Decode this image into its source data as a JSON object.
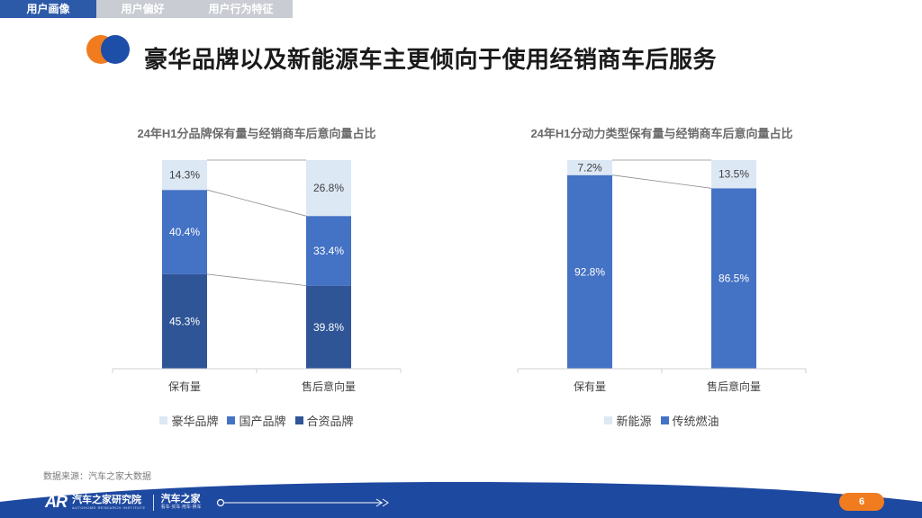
{
  "tabs": [
    {
      "label": "用户画像",
      "active": true
    },
    {
      "label": "用户偏好",
      "active": false
    },
    {
      "label": "用户行为特征",
      "active": false
    }
  ],
  "page_title": "豪华品牌以及新能源车主更倾向于使用经销商车后服务",
  "colors": {
    "accent_orange": "#f07c1f",
    "accent_blue": "#1d4ea8",
    "series_light": "#dde8f5",
    "series_mid": "#4472c4",
    "series_dark": "#2f5597"
  },
  "chart_data": [
    {
      "type": "bar",
      "stacked": true,
      "title": "24年H1分品牌保有量与经销商车后意向量占比",
      "categories": [
        "保有量",
        "售后意向量"
      ],
      "series": [
        {
          "name": "合资品牌",
          "color": "#2f5597",
          "values": [
            45.3,
            39.8
          ],
          "labels": [
            "45.3%",
            "39.8%"
          ],
          "label_color": "#ffffff"
        },
        {
          "name": "国产品牌",
          "color": "#4472c4",
          "values": [
            40.4,
            33.4
          ],
          "labels": [
            "40.4%",
            "33.4%"
          ],
          "label_color": "#ffffff"
        },
        {
          "name": "豪华品牌",
          "color": "#dde8f5",
          "values": [
            14.3,
            26.8
          ],
          "labels": [
            "14.3%",
            "26.8%"
          ],
          "label_color": "#404040"
        }
      ],
      "legend_order": [
        "豪华品牌",
        "国产品牌",
        "合资品牌"
      ],
      "legend": "bottom",
      "ylim": [
        0,
        100
      ]
    },
    {
      "type": "bar",
      "stacked": true,
      "title": "24年H1分动力类型保有量与经销商车后意向量占比",
      "categories": [
        "保有量",
        "售后意向量"
      ],
      "series": [
        {
          "name": "传统燃油",
          "color": "#4472c4",
          "values": [
            92.8,
            86.5
          ],
          "labels": [
            "92.8%",
            "86.5%"
          ],
          "label_color": "#ffffff"
        },
        {
          "name": "新能源",
          "color": "#dde8f5",
          "values": [
            7.2,
            13.5
          ],
          "labels": [
            "7.2%",
            "13.5%"
          ],
          "label_color": "#404040"
        }
      ],
      "legend_order": [
        "新能源",
        "传统燃油"
      ],
      "legend": "bottom",
      "ylim": [
        0,
        100
      ]
    }
  ],
  "source": "数据来源：汽车之家大数据",
  "footer": {
    "brand_mark": "AR",
    "brand_name": "汽车之家研究院",
    "brand_sub": "AUTOHOME RESEARCH INSTITUTE",
    "brand2_name": "汽车之家",
    "brand2_sub": "看车·买车·用车·换车",
    "page_number": "6"
  }
}
